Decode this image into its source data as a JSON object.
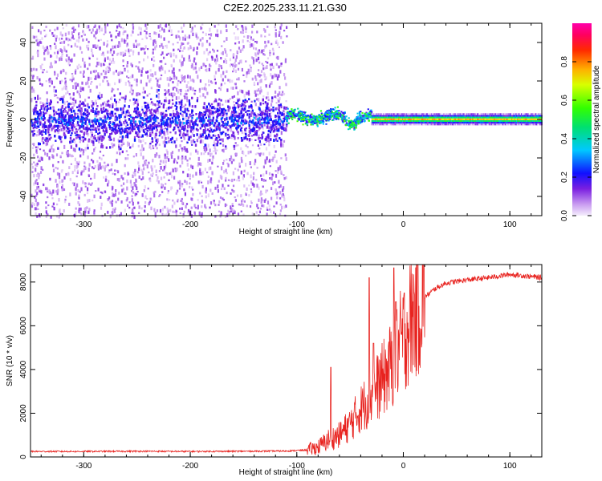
{
  "title": "C2E2.2025.233.11.21.G30",
  "chart_data": [
    {
      "type": "heatmap",
      "name": "spectrogram",
      "xlabel": "Height of straight line (km)",
      "ylabel": "Frequency (Hz)",
      "xlim": [
        -350,
        130
      ],
      "ylim": [
        -50,
        50
      ],
      "x_ticks": [
        -300,
        -200,
        -100,
        0,
        100
      ],
      "y_ticks": [
        -40,
        -20,
        0,
        20,
        40
      ],
      "colorbar": {
        "label": "Normalized spectral amplitude",
        "range": [
          0.0,
          1.0
        ],
        "ticks": [
          0.0,
          0.2,
          0.4,
          0.6,
          0.8
        ]
      },
      "description_regions": [
        {
          "x_range": [
            -350,
            -110
          ],
          "band_center_hz": 0,
          "band_halfwidth_hz": 8,
          "amplitude": 0.15,
          "scatter_halfwidth_hz": 50
        },
        {
          "x_range": [
            -110,
            -30
          ],
          "band_center_hz": 1.5,
          "band_halfwidth_hz": 3,
          "amplitude": 0.45
        },
        {
          "x_range": [
            -30,
            130
          ],
          "band_center_hz": 0.5,
          "band_halfwidth_hz": 2,
          "amplitude": 0.8
        }
      ]
    },
    {
      "type": "line",
      "name": "snr",
      "xlabel": "Height of straight line (km)",
      "ylabel": "SNR (10 * v/v)",
      "xlim": [
        -350,
        130
      ],
      "ylim": [
        0,
        8800
      ],
      "x_ticks": [
        -300,
        -200,
        -100,
        0,
        100
      ],
      "y_ticks": [
        0,
        2000,
        4000,
        6000,
        8000
      ],
      "color": "#e8231f",
      "series": [
        {
          "name": "SNR",
          "x": [
            -350,
            -300,
            -250,
            -200,
            -150,
            -110,
            -90,
            -80,
            -70,
            -60,
            -50,
            -40,
            -30,
            -20,
            -10,
            0,
            10,
            20,
            30,
            40,
            60,
            80,
            100,
            120,
            130
          ],
          "values": [
            250,
            250,
            260,
            250,
            260,
            270,
            320,
            450,
            800,
            1000,
            1500,
            2200,
            2800,
            3500,
            4300,
            5500,
            6600,
            7300,
            7700,
            7950,
            8100,
            8200,
            8350,
            8250,
            8200
          ]
        }
      ],
      "spikes": [
        {
          "x": -68,
          "y": 4100
        },
        {
          "x": -32,
          "y": 8200
        },
        {
          "x": -28,
          "y": 5200
        },
        {
          "x": -9,
          "y": 8650
        },
        {
          "x": -7,
          "y": 7100
        }
      ]
    }
  ]
}
